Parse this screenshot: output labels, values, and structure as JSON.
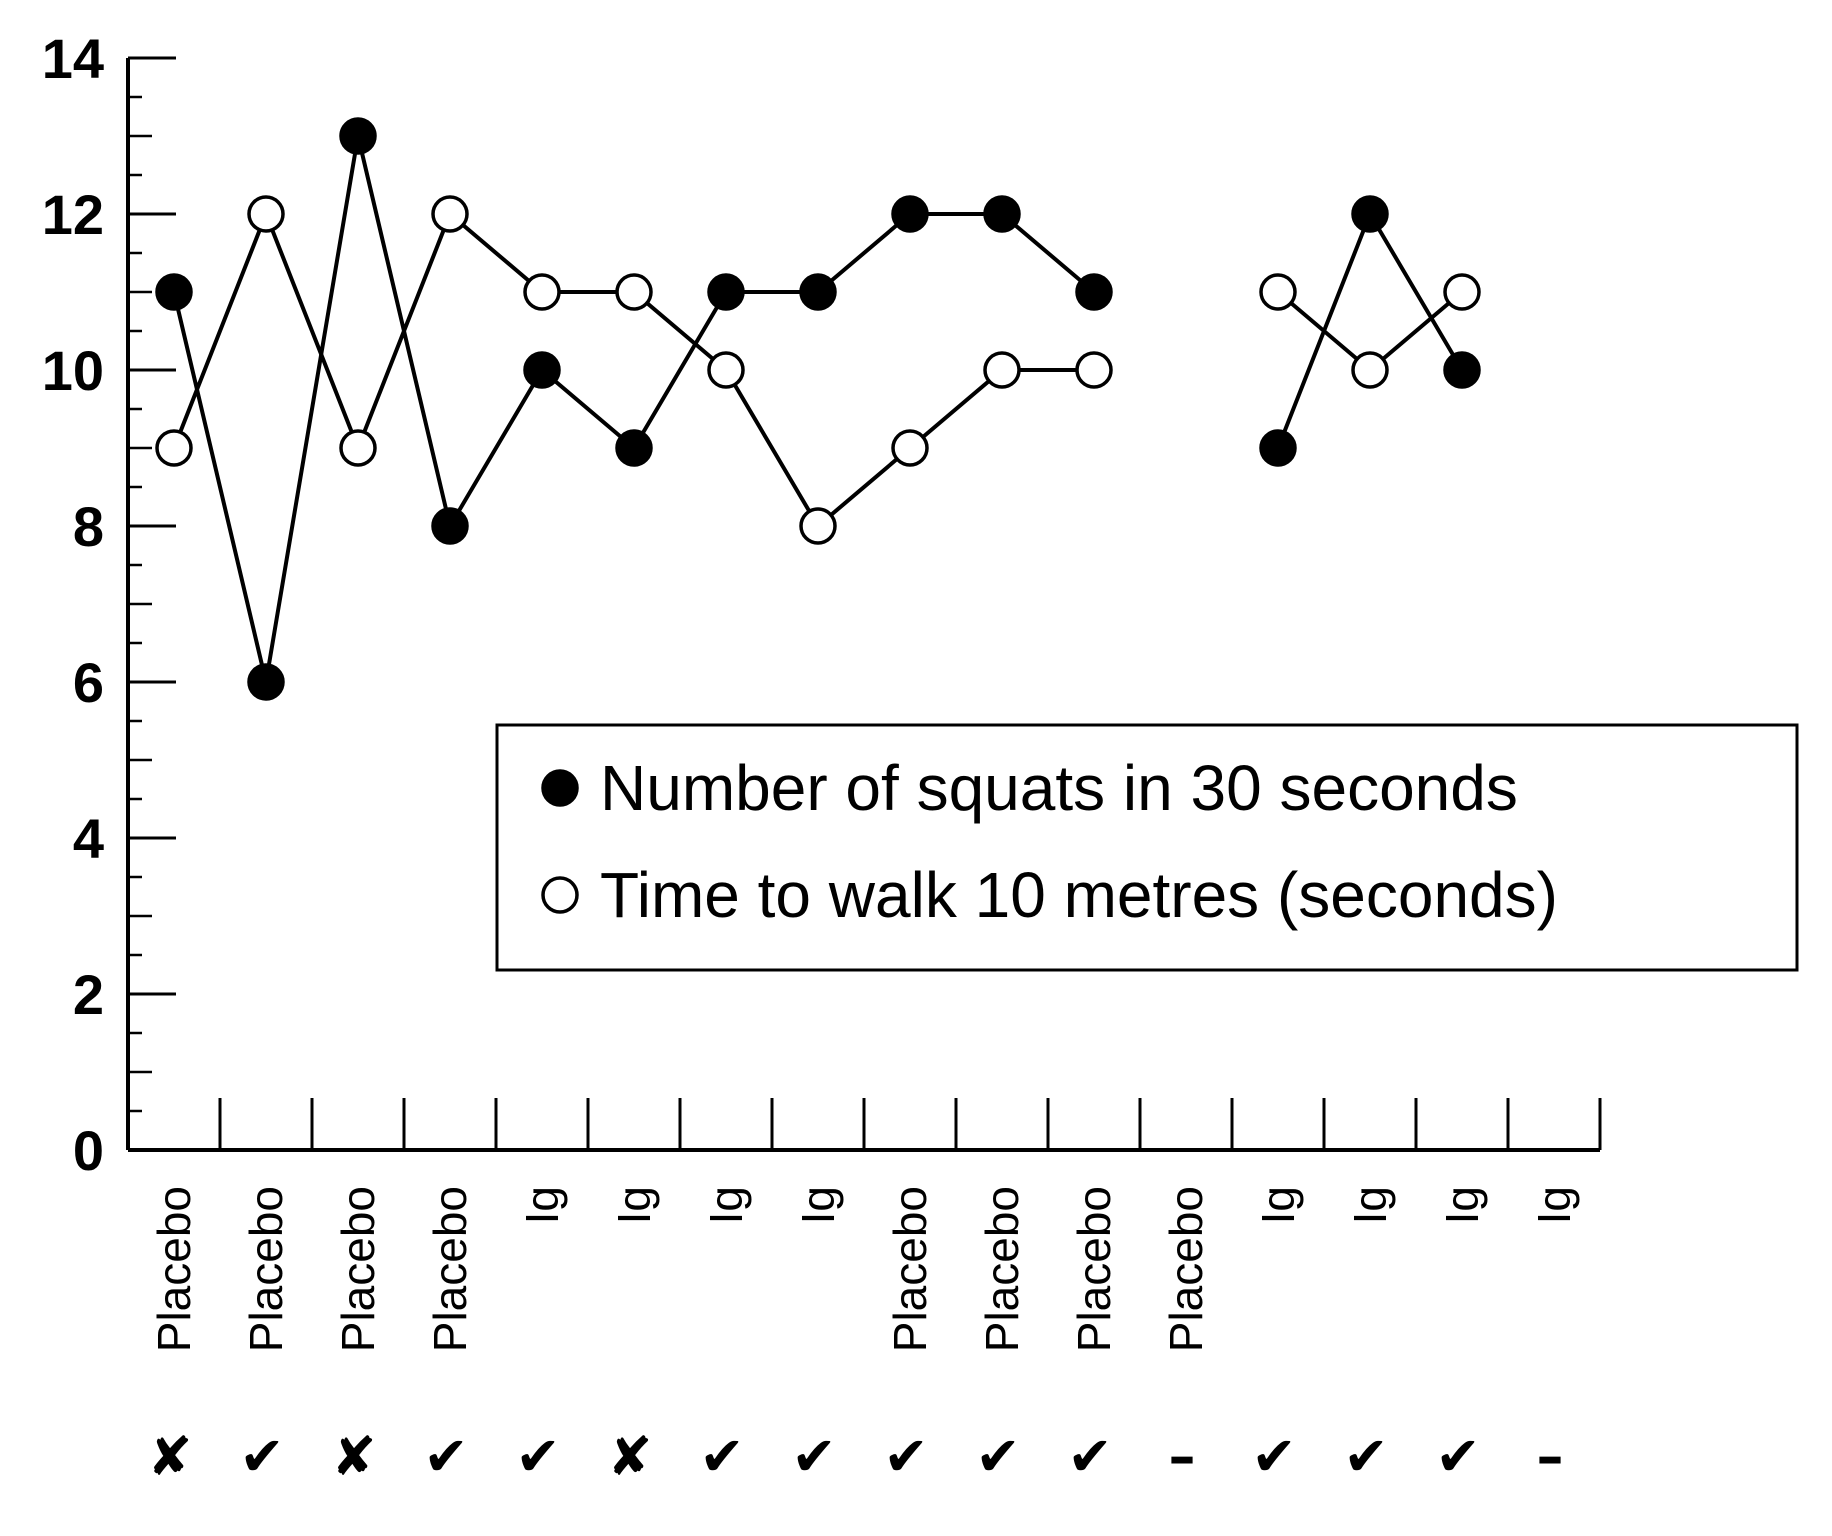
{
  "chart_data": {
    "type": "line",
    "title": "",
    "xlabel": "",
    "ylabel": "",
    "ylim": [
      0,
      14
    ],
    "yticks": [
      0,
      2,
      4,
      6,
      8,
      10,
      12,
      14
    ],
    "grid": false,
    "legend_position": "center-right",
    "categories": [
      "Placebo",
      "Placebo",
      "Placebo",
      "Placebo",
      "Ig",
      "Ig",
      "Ig",
      "Ig",
      "Placebo",
      "Placebo",
      "Placebo",
      "Placebo",
      "Ig",
      "Ig",
      "Ig",
      "Ig"
    ],
    "marks": [
      "✘",
      "✔",
      "✘",
      "✔",
      "✔",
      "✘",
      "✔",
      "✔",
      "✔",
      "✔",
      "✔",
      "–",
      "✔",
      "✔",
      "✔",
      "–"
    ],
    "series": [
      {
        "name": "Number of squats in 30 seconds",
        "marker": "filled-circle",
        "color": "#000000",
        "values": [
          11,
          6,
          13,
          8,
          10,
          9,
          11,
          11,
          12,
          12,
          11,
          null,
          9,
          12,
          10,
          null
        ]
      },
      {
        "name": "Time to walk 10 metres (seconds)",
        "marker": "open-circle",
        "color": "#000000",
        "values": [
          9,
          12,
          9,
          12,
          11,
          11,
          10,
          8,
          9,
          10,
          10,
          null,
          11,
          10,
          11,
          null
        ]
      }
    ]
  }
}
